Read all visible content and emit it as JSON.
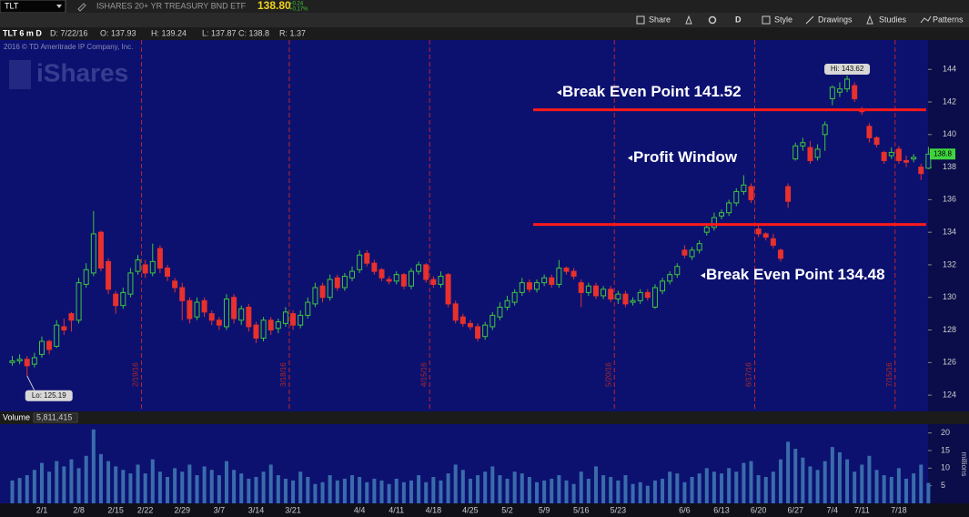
{
  "toolbar": {
    "symbol": "TLT",
    "description": "ISHARES 20+ YR TREASURY BND ETF",
    "last": "138.80",
    "change": "+0.24",
    "change_pct": "+0.17%",
    "buttons": [
      "Share",
      "D",
      "Style",
      "Drawings",
      "Studies",
      "Patterns"
    ]
  },
  "chart_header": {
    "study": "TLT 6 m D",
    "items": [
      "D: 7/22/16",
      "O: 137.93",
      "H: 139.24",
      "L: 137.87",
      "C: 138.8",
      "R: 1.37"
    ],
    "copyright": "2016 © TD Ameritrade IP Company, Inc.",
    "watermark": "iShares"
  },
  "chart_data": [
    {
      "type": "candlestick",
      "categories": [
        null,
        null,
        null,
        null,
        "2/1",
        null,
        null,
        null,
        null,
        "2/8",
        null,
        null,
        null,
        null,
        "2/15",
        null,
        null,
        null,
        "2/22",
        null,
        null,
        null,
        null,
        "2/29",
        null,
        null,
        null,
        null,
        "3/7",
        null,
        null,
        null,
        null,
        "3/14",
        null,
        null,
        null,
        null,
        "3/21",
        null,
        null,
        null,
        null,
        null,
        null,
        null,
        null,
        "4/4",
        null,
        null,
        null,
        null,
        "4/11",
        null,
        null,
        null,
        null,
        "4/18",
        null,
        null,
        null,
        null,
        "4/25",
        null,
        null,
        null,
        null,
        "5/2",
        null,
        null,
        null,
        null,
        "5/9",
        null,
        null,
        null,
        null,
        "5/16",
        null,
        null,
        null,
        null,
        "5/23",
        null,
        null,
        null,
        null,
        null,
        null,
        null,
        null,
        "6/6",
        null,
        null,
        null,
        null,
        "6/13",
        null,
        null,
        null,
        null,
        "6/20",
        null,
        null,
        null,
        null,
        "6/27",
        null,
        null,
        null,
        null,
        "7/4",
        null,
        null,
        null,
        "7/11",
        null,
        null,
        null,
        null,
        "7/18",
        null,
        null,
        null,
        null
      ],
      "open": [
        126.0,
        126.1,
        126.2,
        125.9,
        126.5,
        127.3,
        127.0,
        128.2,
        129.0,
        128.6,
        130.8,
        131.5,
        134.0,
        132.2,
        130.2,
        129.5,
        130.2,
        131.6,
        132.0,
        131.5,
        133.0,
        131.8,
        131.0,
        130.6,
        129.8,
        128.8,
        129.8,
        129.0,
        128.6,
        128.2,
        130.0,
        128.6,
        129.4,
        128.3,
        127.5,
        128.6,
        128.1,
        128.4,
        129.0,
        128.3,
        128.9,
        129.6,
        130.7,
        130.0,
        131.2,
        130.6,
        131.2,
        131.7,
        132.7,
        132.1,
        131.7,
        131.1,
        131.0,
        131.4,
        130.7,
        131.6,
        132.0,
        131.1,
        130.8,
        131.4,
        129.6,
        128.8,
        128.4,
        128.2,
        127.6,
        128.2,
        128.8,
        129.4,
        129.7,
        130.3,
        130.9,
        130.5,
        130.9,
        131.2,
        130.8,
        131.8,
        131.6,
        130.9,
        130.3,
        130.7,
        130.1,
        130.5,
        129.9,
        130.2,
        129.7,
        129.8,
        130.3,
        129.4,
        130.4,
        131.0,
        131.4,
        132.9,
        132.5,
        132.9,
        134.0,
        134.3,
        135.0,
        135.2,
        135.8,
        136.5,
        136.8,
        134.2,
        133.9,
        133.6,
        132.9,
        136.8,
        138.5,
        139.3,
        139.2,
        138.6,
        140.0,
        142.2,
        142.6,
        142.8,
        143.0,
        141.5,
        140.5,
        139.8,
        138.9,
        138.7,
        139.1,
        138.4,
        138.5,
        138.0,
        137.93
      ],
      "high": [
        126.4,
        126.5,
        126.4,
        126.6,
        127.6,
        127.4,
        128.6,
        128.7,
        129.1,
        131.2,
        132.1,
        135.3,
        134.1,
        132.4,
        130.4,
        130.6,
        131.8,
        132.6,
        132.3,
        133.3,
        133.2,
        132.0,
        131.2,
        130.9,
        130.0,
        130.0,
        130.0,
        129.2,
        128.8,
        130.2,
        130.2,
        129.5,
        129.6,
        128.5,
        128.8,
        128.8,
        128.7,
        129.4,
        129.2,
        129.2,
        130.0,
        130.9,
        130.9,
        131.4,
        131.4,
        131.5,
        131.9,
        132.9,
        132.9,
        132.3,
        131.8,
        131.3,
        131.6,
        131.5,
        131.8,
        132.2,
        132.1,
        131.3,
        131.6,
        131.5,
        129.8,
        129.0,
        128.6,
        128.4,
        128.5,
        129.1,
        129.7,
        130.1,
        130.5,
        131.2,
        131.1,
        131.1,
        131.4,
        131.4,
        132.3,
        131.9,
        131.8,
        131.1,
        130.9,
        130.9,
        130.7,
        130.7,
        130.4,
        130.4,
        130.0,
        130.5,
        130.5,
        130.8,
        131.2,
        131.6,
        132.1,
        133.2,
        133.1,
        133.5,
        134.5,
        135.2,
        135.4,
        136.0,
        136.7,
        137.5,
        137.0,
        134.5,
        134.0,
        133.9,
        133.0,
        137.0,
        139.5,
        139.8,
        139.6,
        139.4,
        140.8,
        143.0,
        143.2,
        143.62,
        143.2,
        141.7,
        140.7,
        139.9,
        139.0,
        139.2,
        139.3,
        138.7,
        138.8,
        138.2,
        139.24
      ],
      "low": [
        125.8,
        125.9,
        125.19,
        125.7,
        126.3,
        126.5,
        126.9,
        127.7,
        127.9,
        128.4,
        130.6,
        131.3,
        131.6,
        130.2,
        129.0,
        129.3,
        130.0,
        131.4,
        131.2,
        131.3,
        131.5,
        131.0,
        130.3,
        128.6,
        128.4,
        128.6,
        128.8,
        128.3,
        128.0,
        128.0,
        128.4,
        128.3,
        127.9,
        127.2,
        127.3,
        127.7,
        127.8,
        128.2,
        128.0,
        128.1,
        128.7,
        129.4,
        129.7,
        129.8,
        130.4,
        130.4,
        131.0,
        131.5,
        131.9,
        131.4,
        131.0,
        130.8,
        130.8,
        130.5,
        130.5,
        131.4,
        130.9,
        130.6,
        130.6,
        129.4,
        128.4,
        128.2,
        128.0,
        127.3,
        127.4,
        128.0,
        128.6,
        129.2,
        129.5,
        130.1,
        130.3,
        130.3,
        130.7,
        130.6,
        130.6,
        131.4,
        131.1,
        129.4,
        130.1,
        129.9,
        129.9,
        129.7,
        129.6,
        129.4,
        129.5,
        129.6,
        129.8,
        129.3,
        130.2,
        130.8,
        131.2,
        132.4,
        132.3,
        132.7,
        133.8,
        134.1,
        134.8,
        135.0,
        135.6,
        136.3,
        135.8,
        133.7,
        133.5,
        133.0,
        132.2,
        135.5,
        138.4,
        139.0,
        138.2,
        138.4,
        139.0,
        141.8,
        142.3,
        142.6,
        142.0,
        141.2,
        139.5,
        139.2,
        138.2,
        138.5,
        138.2,
        138.0,
        138.3,
        137.2,
        137.87
      ],
      "close": [
        126.1,
        126.2,
        125.8,
        126.3,
        127.3,
        126.8,
        128.3,
        128.0,
        128.6,
        130.9,
        131.7,
        133.9,
        131.8,
        130.5,
        129.5,
        130.3,
        131.5,
        132.3,
        131.5,
        132.2,
        131.8,
        131.3,
        130.6,
        129.8,
        128.7,
        129.7,
        129.1,
        128.6,
        128.3,
        129.9,
        128.7,
        129.3,
        128.2,
        127.5,
        128.6,
        128.0,
        128.5,
        129.1,
        128.3,
        128.9,
        129.7,
        130.6,
        130.0,
        131.1,
        130.6,
        131.3,
        131.6,
        132.6,
        132.1,
        131.6,
        131.2,
        131.0,
        131.4,
        130.7,
        131.6,
        132.0,
        131.1,
        130.8,
        131.3,
        129.6,
        128.6,
        128.4,
        128.2,
        127.5,
        128.3,
        128.9,
        129.4,
        129.8,
        130.3,
        130.9,
        130.5,
        130.9,
        131.2,
        130.8,
        131.8,
        131.6,
        131.3,
        130.3,
        130.7,
        130.1,
        130.5,
        129.9,
        130.2,
        129.6,
        129.8,
        130.3,
        130.0,
        130.6,
        131.0,
        131.4,
        131.9,
        132.6,
        132.9,
        133.3,
        134.3,
        134.9,
        135.2,
        135.8,
        136.5,
        136.9,
        136.0,
        133.9,
        133.7,
        133.2,
        132.4,
        135.9,
        139.3,
        139.5,
        138.4,
        139.1,
        140.6,
        142.9,
        142.8,
        143.4,
        142.2,
        141.4,
        139.8,
        139.4,
        138.4,
        138.9,
        138.4,
        138.3,
        138.6,
        137.6,
        138.8
      ],
      "up_color": "#3fc63f",
      "down_color": "#e8302c",
      "ylim": [
        123,
        145.8
      ],
      "yticks": [
        124,
        126,
        128,
        130,
        132,
        134,
        136,
        138,
        140,
        142,
        144
      ],
      "hi_label": "Hi: 143.62",
      "lo_label": "Lo: 125.19",
      "levels": [
        {
          "label": "Break Even Point 141.52",
          "value": 141.52
        },
        {
          "label": "Break Even Point 134.48",
          "value": 134.48
        }
      ],
      "level_color": "#ff1a1a",
      "annotations": [
        "Profit Window"
      ],
      "expirations": [
        {
          "at": 17,
          "label": "2/19/16"
        },
        {
          "at": 37,
          "label": "3/18/16"
        },
        {
          "at": 56,
          "label": "4/15/16"
        },
        {
          "at": 81,
          "label": "5/20/16"
        },
        {
          "at": 100,
          "label": "6/17/16"
        },
        {
          "at": 119,
          "label": "7/15/16"
        }
      ]
    },
    {
      "type": "bar",
      "title": "Volume",
      "value_label": "5,811,415",
      "axis_label": "millions",
      "color": "#3a6cab",
      "values": [
        6.5,
        7.2,
        8.0,
        9.5,
        11.5,
        9.0,
        12.0,
        10.5,
        12.5,
        10.0,
        13.5,
        21.0,
        14.0,
        12.0,
        10.5,
        9.5,
        8.5,
        11.0,
        8.5,
        12.5,
        9.0,
        7.5,
        10.0,
        9.0,
        11.0,
        8.0,
        10.5,
        9.5,
        8.0,
        12.0,
        9.5,
        8.5,
        7.0,
        7.5,
        9.0,
        11.0,
        8.0,
        7.0,
        6.5,
        9.0,
        7.5,
        5.5,
        6.0,
        8.0,
        6.5,
        7.0,
        8.0,
        7.5,
        6.0,
        7.0,
        6.5,
        5.5,
        7.0,
        6.0,
        6.5,
        8.0,
        6.0,
        7.5,
        6.5,
        8.5,
        11.0,
        9.5,
        7.0,
        8.0,
        9.0,
        10.5,
        8.0,
        7.0,
        9.0,
        8.5,
        7.5,
        6.0,
        6.5,
        7.0,
        8.0,
        6.5,
        5.5,
        9.0,
        7.0,
        10.5,
        8.0,
        7.5,
        6.5,
        8.0,
        5.5,
        6.0,
        5.0,
        6.5,
        7.0,
        9.0,
        8.5,
        6.0,
        7.5,
        8.5,
        10.0,
        9.0,
        8.5,
        10.0,
        9.0,
        11.5,
        12.0,
        8.0,
        7.5,
        9.0,
        12.5,
        17.5,
        15.5,
        13.0,
        10.5,
        9.5,
        12.0,
        16.0,
        14.5,
        12.5,
        9.0,
        11.0,
        13.5,
        9.5,
        8.0,
        7.5,
        10.0,
        7.0,
        8.5,
        11.0,
        5.811415
      ],
      "ylim": [
        0,
        22.5
      ],
      "yticks": [
        5,
        10,
        15,
        20
      ]
    }
  ]
}
